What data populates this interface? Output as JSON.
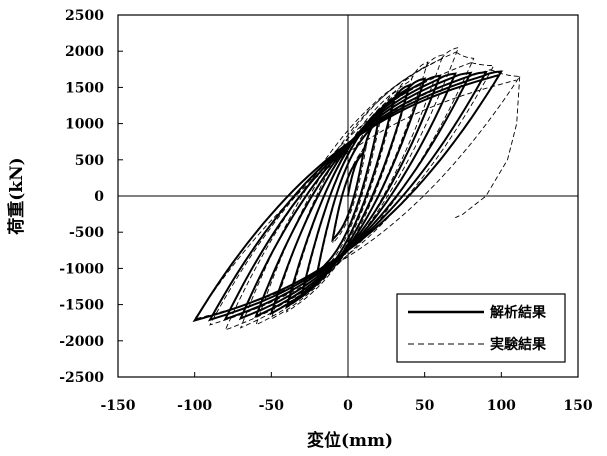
{
  "chart_data": {
    "type": "line",
    "title": "",
    "xlabel": "変位(mm)",
    "ylabel": "荷重(kN)",
    "xlim": [
      -150,
      150
    ],
    "ylim": [
      -2500,
      2500
    ],
    "xticks": [
      -150,
      -100,
      -50,
      0,
      50,
      100,
      150
    ],
    "yticks": [
      2500,
      2000,
      1500,
      1000,
      500,
      0,
      -500,
      -1000,
      -1500,
      -2000,
      -2500
    ],
    "grid": false,
    "legend_position": "bottom-right",
    "series": [
      {
        "name": "解析結果",
        "style": "solid",
        "loops": [
          {
            "amp_pos": 10,
            "amp_neg": -10,
            "peak_pos": 600,
            "peak_neg": -600
          },
          {
            "amp_pos": 20,
            "amp_neg": -20,
            "peak_pos": 1050,
            "peak_neg": -1050
          },
          {
            "amp_pos": 30,
            "amp_neg": -30,
            "peak_pos": 1350,
            "peak_neg": -1350
          },
          {
            "amp_pos": 40,
            "amp_neg": -40,
            "peak_pos": 1530,
            "peak_neg": -1530
          },
          {
            "amp_pos": 50,
            "amp_neg": -50,
            "peak_pos": 1620,
            "peak_neg": -1620
          },
          {
            "amp_pos": 60,
            "amp_neg": -60,
            "peak_pos": 1660,
            "peak_neg": -1660
          },
          {
            "amp_pos": 70,
            "amp_neg": -70,
            "peak_pos": 1690,
            "peak_neg": -1690
          },
          {
            "amp_pos": 80,
            "amp_neg": -80,
            "peak_pos": 1700,
            "peak_neg": -1700
          },
          {
            "amp_pos": 90,
            "amp_neg": -90,
            "peak_pos": 1710,
            "peak_neg": -1710
          },
          {
            "amp_pos": 100,
            "amp_neg": -100,
            "peak_pos": 1720,
            "peak_neg": -1720
          }
        ]
      },
      {
        "name": "実験結果",
        "style": "dashed",
        "loops": [
          {
            "amp_pos": 12,
            "amp_neg": -10,
            "peak_pos": 700,
            "peak_neg": -650
          },
          {
            "amp_pos": 22,
            "amp_neg": -20,
            "peak_pos": 1150,
            "peak_neg": -1100
          },
          {
            "amp_pos": 32,
            "amp_neg": -30,
            "peak_pos": 1450,
            "peak_neg": -1400
          },
          {
            "amp_pos": 42,
            "amp_neg": -40,
            "peak_pos": 1650,
            "peak_neg": -1600
          },
          {
            "amp_pos": 52,
            "amp_neg": -50,
            "peak_pos": 1850,
            "peak_neg": -1700
          },
          {
            "amp_pos": 62,
            "amp_neg": -60,
            "peak_pos": 1950,
            "peak_neg": -1780
          },
          {
            "amp_pos": 72,
            "amp_neg": -70,
            "peak_pos": 2050,
            "peak_neg": -1820
          },
          {
            "amp_pos": 82,
            "amp_neg": -80,
            "peak_pos": 1900,
            "peak_neg": -1850
          },
          {
            "amp_pos": 95,
            "amp_neg": -90,
            "peak_pos": 1800,
            "peak_neg": -1780
          },
          {
            "amp_pos": 112,
            "amp_neg": -100,
            "peak_pos": 1650,
            "peak_neg": -1700
          }
        ],
        "tail": [
          [
            112,
            1650
          ],
          [
            110,
            1000
          ],
          [
            104,
            500
          ],
          [
            90,
            0
          ],
          [
            75,
            -250
          ],
          [
            70,
            -300
          ]
        ]
      }
    ]
  }
}
